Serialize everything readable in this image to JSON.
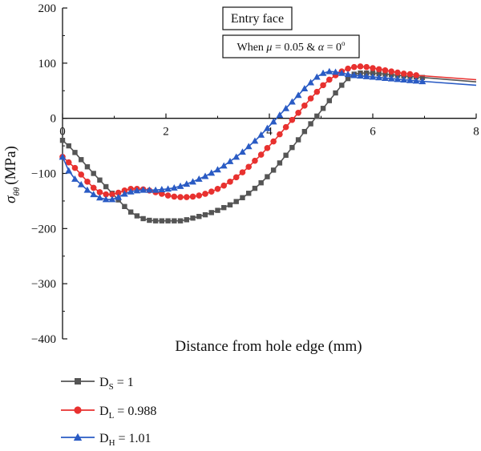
{
  "chart_data": {
    "type": "line",
    "xlabel": "Distance from hole edge (mm)",
    "ylabel": {
      "main": "σ",
      "sub": "θθ",
      "unit": "(MPa)"
    },
    "xlim": [
      0,
      8
    ],
    "ylim": [
      -400,
      200
    ],
    "xticks": [
      "0",
      "2",
      "4",
      "6",
      "8"
    ],
    "yticks": [
      "200",
      "100",
      "0",
      "−100",
      "−200",
      "−300",
      "−400"
    ],
    "grid": false,
    "legend_position": "bottom-left",
    "annotations": {
      "box1": "Entry face",
      "box2_parts": [
        "When ",
        "μ",
        " = 0.05 & ",
        "α",
        " = 0",
        "o"
      ]
    },
    "series": [
      {
        "name": "DS = 1",
        "legend_main": "D",
        "legend_sub": "S",
        "legend_value": " = 1",
        "color": "#555555",
        "marker": "square",
        "x": [
          0,
          0.12,
          0.24,
          0.36,
          0.48,
          0.6,
          0.72,
          0.84,
          0.96,
          1.08,
          1.2,
          1.32,
          1.44,
          1.56,
          1.68,
          1.8,
          1.92,
          2.04,
          2.16,
          2.28,
          2.4,
          2.52,
          2.64,
          2.76,
          2.88,
          3.0,
          3.12,
          3.24,
          3.36,
          3.48,
          3.6,
          3.72,
          3.84,
          3.96,
          4.08,
          4.2,
          4.32,
          4.44,
          4.56,
          4.68,
          4.8,
          4.92,
          5.04,
          5.16,
          5.28,
          5.4,
          5.52,
          5.64,
          5.76,
          5.88,
          6.0,
          6.12,
          6.24,
          6.36,
          6.48,
          6.6,
          6.72,
          6.84,
          6.96,
          8.0
        ],
        "y": [
          -40,
          -50,
          -62,
          -75,
          -88,
          -100,
          -112,
          -124,
          -136,
          -148,
          -160,
          -170,
          -177,
          -182,
          -185,
          -186,
          -186,
          -186,
          -186,
          -186,
          -184,
          -181,
          -178,
          -175,
          -171,
          -167,
          -162,
          -157,
          -151,
          -144,
          -136,
          -127,
          -117,
          -106,
          -94,
          -81,
          -67,
          -53,
          -39,
          -24,
          -10,
          4,
          18,
          32,
          46,
          60,
          72,
          80,
          82,
          82,
          82,
          81,
          80,
          79,
          78,
          77,
          76,
          75,
          74,
          66
        ]
      },
      {
        "name": "DL = 0.988",
        "legend_main": "D",
        "legend_sub": "L",
        "legend_value": " = 0.988",
        "color": "#e8312f",
        "marker": "circle",
        "x": [
          0,
          0.12,
          0.24,
          0.36,
          0.48,
          0.6,
          0.72,
          0.84,
          0.96,
          1.08,
          1.2,
          1.32,
          1.44,
          1.56,
          1.68,
          1.8,
          1.92,
          2.04,
          2.16,
          2.28,
          2.4,
          2.52,
          2.64,
          2.76,
          2.88,
          3.0,
          3.12,
          3.24,
          3.36,
          3.48,
          3.6,
          3.72,
          3.84,
          3.96,
          4.08,
          4.2,
          4.32,
          4.44,
          4.56,
          4.68,
          4.8,
          4.92,
          5.04,
          5.16,
          5.28,
          5.4,
          5.52,
          5.64,
          5.76,
          5.88,
          6.0,
          6.12,
          6.24,
          6.36,
          6.48,
          6.6,
          6.72,
          6.84,
          8.0
        ],
        "y": [
          -70,
          -80,
          -90,
          -102,
          -115,
          -126,
          -134,
          -138,
          -138,
          -135,
          -131,
          -128,
          -128,
          -129,
          -131,
          -134,
          -137,
          -140,
          -142,
          -143,
          -143,
          -142,
          -140,
          -137,
          -133,
          -128,
          -122,
          -115,
          -107,
          -98,
          -88,
          -77,
          -66,
          -54,
          -42,
          -29,
          -16,
          -3,
          10,
          23,
          36,
          48,
          60,
          70,
          78,
          85,
          90,
          93,
          94,
          93,
          91,
          89,
          87,
          85,
          83,
          81,
          80,
          78,
          70
        ]
      },
      {
        "name": "DH = 1.01",
        "legend_main": "D",
        "legend_sub": "H",
        "legend_value": " = 1.01",
        "color": "#2a5bc4",
        "marker": "triangle",
        "x": [
          0,
          0.12,
          0.24,
          0.36,
          0.48,
          0.6,
          0.72,
          0.84,
          0.96,
          1.08,
          1.2,
          1.32,
          1.44,
          1.56,
          1.68,
          1.8,
          1.92,
          2.04,
          2.16,
          2.28,
          2.4,
          2.52,
          2.64,
          2.76,
          2.88,
          3.0,
          3.12,
          3.24,
          3.36,
          3.48,
          3.6,
          3.72,
          3.84,
          3.96,
          4.08,
          4.2,
          4.32,
          4.44,
          4.56,
          4.68,
          4.8,
          4.92,
          5.04,
          5.16,
          5.28,
          5.4,
          5.52,
          5.64,
          5.76,
          5.88,
          6.0,
          6.12,
          6.24,
          6.36,
          6.48,
          6.6,
          6.72,
          6.84,
          6.96,
          8.0
        ],
        "y": [
          -70,
          -95,
          -110,
          -120,
          -130,
          -138,
          -144,
          -147,
          -147,
          -143,
          -137,
          -133,
          -131,
          -130,
          -130,
          -130,
          -129,
          -128,
          -126,
          -123,
          -119,
          -115,
          -110,
          -105,
          -99,
          -93,
          -86,
          -78,
          -70,
          -61,
          -51,
          -41,
          -30,
          -18,
          -6,
          6,
          18,
          30,
          42,
          54,
          65,
          75,
          82,
          85,
          84,
          82,
          80,
          78,
          77,
          76,
          75,
          74,
          73,
          72,
          71,
          70,
          69,
          68,
          67,
          60
        ]
      }
    ]
  }
}
